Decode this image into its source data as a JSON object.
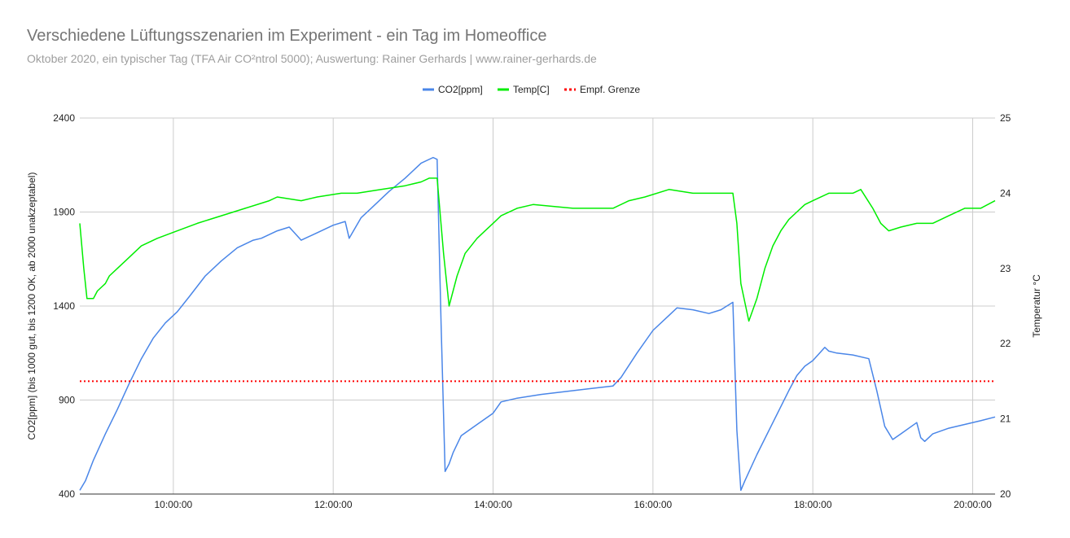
{
  "chart_data": {
    "type": "line",
    "title": "Verschiedene Lüftungsszenarien im Experiment - ein Tag im Homeoffice",
    "subtitle": "Oktober 2020, ein typischer Tag (TFA Air CO²ntrol 5000); Auswertung: Rainer Gerhards | www.rainer-gerhards.de",
    "ylabel": "CO2[ppm] (bis 1000 gut, bis 1200 OK, ab 2000 unakzeptabel)",
    "y2label": "Temperatur °C",
    "xlim": [
      8.83,
      20.28
    ],
    "ylim": [
      400,
      2400
    ],
    "y2lim": [
      20,
      25
    ],
    "x_tick_values": [
      10,
      12,
      14,
      16,
      18,
      20
    ],
    "x_tick_labels": [
      "10:00:00",
      "12:00:00",
      "14:00:00",
      "16:00:00",
      "18:00:00",
      "20:00:00"
    ],
    "y_tick_labels": [
      "400",
      "900",
      "1400",
      "1900",
      "2400"
    ],
    "y_tick_values": [
      400,
      900,
      1400,
      1900,
      2400
    ],
    "y2_tick_labels": [
      "20",
      "21",
      "22",
      "23",
      "24",
      "25"
    ],
    "y2_tick_values": [
      20,
      21,
      22,
      23,
      24,
      25
    ],
    "grid": true,
    "legend_position": "top",
    "series": [
      {
        "name": "CO2[ppm]",
        "axis": "left",
        "color": "#4a86e8",
        "x": [
          8.83,
          8.9,
          9.0,
          9.15,
          9.3,
          9.45,
          9.6,
          9.75,
          9.9,
          10.05,
          10.2,
          10.4,
          10.6,
          10.8,
          11.0,
          11.1,
          11.3,
          11.45,
          11.6,
          11.8,
          12.0,
          12.15,
          12.2,
          12.35,
          12.5,
          12.7,
          12.9,
          13.1,
          13.25,
          13.3,
          13.35,
          13.4,
          13.45,
          13.5,
          13.6,
          13.8,
          14.0,
          14.1,
          14.3,
          14.6,
          14.9,
          15.2,
          15.5,
          15.6,
          15.8,
          16.0,
          16.2,
          16.3,
          16.5,
          16.7,
          16.85,
          17.0,
          17.05,
          17.1,
          17.15,
          17.3,
          17.5,
          17.7,
          17.8,
          17.9,
          18.0,
          18.15,
          18.2,
          18.3,
          18.5,
          18.7,
          18.8,
          18.9,
          19.0,
          19.1,
          19.3,
          19.35,
          19.4,
          19.5,
          19.7,
          19.9,
          20.1,
          20.28
        ],
        "values": [
          420,
          470,
          580,
          720,
          850,
          990,
          1120,
          1230,
          1310,
          1370,
          1450,
          1560,
          1640,
          1710,
          1750,
          1760,
          1800,
          1820,
          1750,
          1790,
          1830,
          1850,
          1760,
          1870,
          1930,
          2010,
          2080,
          2160,
          2190,
          2180,
          1300,
          520,
          560,
          620,
          710,
          770,
          830,
          890,
          910,
          930,
          945,
          960,
          975,
          1020,
          1150,
          1270,
          1350,
          1390,
          1380,
          1360,
          1380,
          1420,
          740,
          420,
          470,
          610,
          780,
          950,
          1030,
          1080,
          1110,
          1180,
          1160,
          1150,
          1140,
          1120,
          950,
          760,
          690,
          720,
          780,
          700,
          680,
          720,
          750,
          770,
          790,
          810
        ]
      },
      {
        "name": "Temp[C]",
        "axis": "right",
        "color": "#00ee00",
        "x": [
          8.83,
          8.88,
          8.92,
          9.0,
          9.05,
          9.15,
          9.2,
          9.3,
          9.4,
          9.5,
          9.6,
          9.8,
          10.05,
          10.3,
          10.6,
          10.9,
          11.2,
          11.3,
          11.6,
          11.8,
          12.1,
          12.3,
          12.6,
          12.9,
          13.1,
          13.2,
          13.3,
          13.38,
          13.45,
          13.55,
          13.65,
          13.8,
          13.9,
          14.0,
          14.1,
          14.3,
          14.5,
          15.0,
          15.5,
          15.7,
          15.9,
          16.2,
          16.5,
          16.8,
          17.0,
          17.05,
          17.1,
          17.2,
          17.3,
          17.4,
          17.5,
          17.6,
          17.7,
          17.8,
          17.9,
          18.0,
          18.2,
          18.5,
          18.6,
          18.75,
          18.85,
          18.95,
          19.1,
          19.3,
          19.5,
          19.7,
          19.9,
          20.1,
          20.28
        ],
        "values": [
          23.6,
          23.0,
          22.6,
          22.6,
          22.7,
          22.8,
          22.9,
          23.0,
          23.1,
          23.2,
          23.3,
          23.4,
          23.5,
          23.6,
          23.7,
          23.8,
          23.9,
          23.95,
          23.9,
          23.95,
          24.0,
          24.0,
          24.05,
          24.1,
          24.15,
          24.2,
          24.2,
          23.2,
          22.5,
          22.9,
          23.2,
          23.4,
          23.5,
          23.6,
          23.7,
          23.8,
          23.85,
          23.8,
          23.8,
          23.9,
          23.95,
          24.05,
          24.0,
          24.0,
          24.0,
          23.6,
          22.8,
          22.3,
          22.6,
          23.0,
          23.3,
          23.5,
          23.65,
          23.75,
          23.85,
          23.9,
          24.0,
          24.0,
          24.05,
          23.8,
          23.6,
          23.5,
          23.55,
          23.6,
          23.6,
          23.7,
          23.8,
          23.8,
          23.9
        ]
      },
      {
        "name": "Empf. Grenze",
        "axis": "left",
        "color": "#ff0000",
        "style": "dotted",
        "x": [
          8.83,
          20.28
        ],
        "values": [
          1000,
          1000
        ]
      }
    ]
  }
}
